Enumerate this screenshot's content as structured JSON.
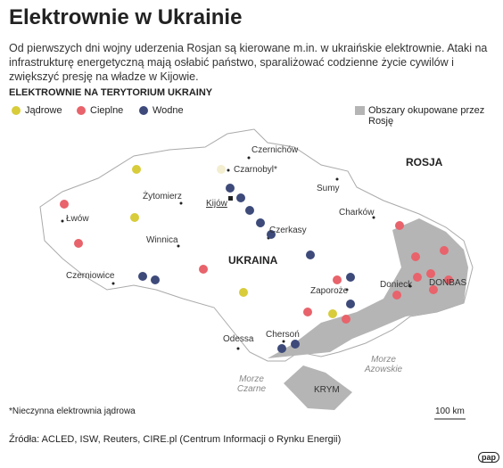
{
  "header": {
    "title": "Elektrownie w Ukrainie",
    "description": "Od pierwszych dni wojny uderzenia Rosjan są kierowane m.in. w ukraińskie elektrownie. Ataki na infrastrukturę energetyczną mają osłabić państwo, sparaliżować codzienne życie cywilów i zwiększyć presję na władze w Kijowie."
  },
  "legend": {
    "title": "ELEKTROWNIE NA TERYTORIUM UKRAINY",
    "items": [
      "Jądrowe",
      "Cieplne",
      "Wodne"
    ],
    "occupied": "Obszary okupowane przez Rosję"
  },
  "map": {
    "labels": [
      "Czernichów",
      "Czarnobyl*",
      "Sumy",
      "Żytomierz",
      "Kijów",
      "Charków",
      "Łwów",
      "Winnica",
      "Czerkasy",
      "ROSJA",
      "UKRAINA",
      "Czerniowice",
      "Zaporoże",
      "Donieck",
      "DONBAS",
      "Chersoń",
      "Odessa",
      "Morze Czarne",
      "Morze Azowskie",
      "KRYM"
    ]
  },
  "footnote": "*Nieczynna elektrownia jądrowa",
  "scale": "100 km",
  "source": "Źródła: ACLED, ISW, Reuters, CIRE.pl (Centrum Informacji o Rynku Energii)",
  "logo": "pap"
}
